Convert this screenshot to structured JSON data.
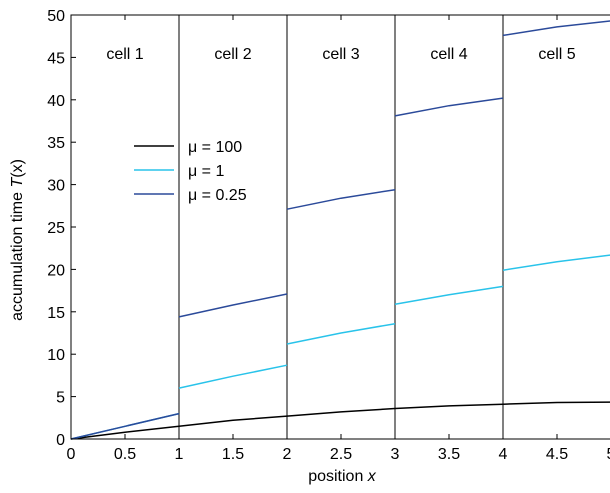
{
  "chart_data": {
    "type": "line",
    "title": "",
    "xlabel_prefix": "position ",
    "xlabel_var": "x",
    "ylabel_prefix": "accumulation time ",
    "ylabel_var": "T",
    "ylabel_suffix": "(x)",
    "xlim": [
      0,
      5
    ],
    "ylim": [
      0,
      50
    ],
    "xticks": [
      0,
      0.5,
      1,
      1.5,
      2,
      2.5,
      3,
      3.5,
      4,
      4.5,
      5
    ],
    "xtick_labels": [
      "0",
      "0.5",
      "1",
      "1.5",
      "2",
      "2.5",
      "3",
      "3.5",
      "4",
      "4.5",
      "5"
    ],
    "yticks": [
      0,
      5,
      10,
      15,
      20,
      25,
      30,
      35,
      40,
      45,
      50
    ],
    "ytick_labels": [
      "0",
      "5",
      "10",
      "15",
      "20",
      "25",
      "30",
      "35",
      "40",
      "45",
      "50"
    ],
    "grid": false,
    "cell_boundaries": [
      1,
      2,
      3,
      4
    ],
    "cell_labels": [
      {
        "text": "cell 1",
        "x": 0.5,
        "y": 45.5
      },
      {
        "text": "cell 2",
        "x": 1.5,
        "y": 45.5
      },
      {
        "text": "cell 3",
        "x": 2.5,
        "y": 45.5
      },
      {
        "text": "cell 4",
        "x": 3.5,
        "y": 45.5
      },
      {
        "text": "cell 5",
        "x": 4.5,
        "y": 45.5
      }
    ],
    "legend_placement": "upper-left",
    "series": [
      {
        "name": "μ = 100",
        "color": "#000000",
        "segments": [
          [
            [
              0,
              0
            ],
            [
              0.5,
              0.8
            ],
            [
              1,
              1.5
            ],
            [
              1.5,
              2.2
            ],
            [
              2,
              2.7
            ],
            [
              2.5,
              3.2
            ],
            [
              3,
              3.6
            ],
            [
              3.5,
              3.9
            ],
            [
              4,
              4.1
            ],
            [
              4.5,
              4.3
            ],
            [
              5,
              4.35
            ]
          ]
        ]
      },
      {
        "name": "μ = 1",
        "color": "#29c3ea",
        "segments": [
          [
            [
              0,
              0
            ],
            [
              0.5,
              1.5
            ],
            [
              1,
              3.0
            ]
          ],
          [
            [
              1,
              6.0
            ],
            [
              1.5,
              7.4
            ],
            [
              2,
              8.7
            ]
          ],
          [
            [
              2,
              11.2
            ],
            [
              2.5,
              12.5
            ],
            [
              3,
              13.6
            ]
          ],
          [
            [
              3,
              15.9
            ],
            [
              3.5,
              17.0
            ],
            [
              4,
              18.0
            ]
          ],
          [
            [
              4,
              19.9
            ],
            [
              4.5,
              20.9
            ],
            [
              5,
              21.7
            ]
          ]
        ]
      },
      {
        "name": "μ = 0.25",
        "color": "#2b4a9a",
        "segments": [
          [
            [
              0,
              0
            ],
            [
              0.5,
              1.5
            ],
            [
              1,
              3.0
            ]
          ],
          [
            [
              1,
              14.4
            ],
            [
              1.5,
              15.8
            ],
            [
              2,
              17.1
            ]
          ],
          [
            [
              2,
              27.1
            ],
            [
              2.5,
              28.4
            ],
            [
              3,
              29.4
            ]
          ],
          [
            [
              3,
              38.1
            ],
            [
              3.5,
              39.3
            ],
            [
              4,
              40.2
            ]
          ],
          [
            [
              4,
              47.6
            ],
            [
              4.5,
              48.6
            ],
            [
              5,
              49.3
            ]
          ]
        ]
      }
    ]
  }
}
